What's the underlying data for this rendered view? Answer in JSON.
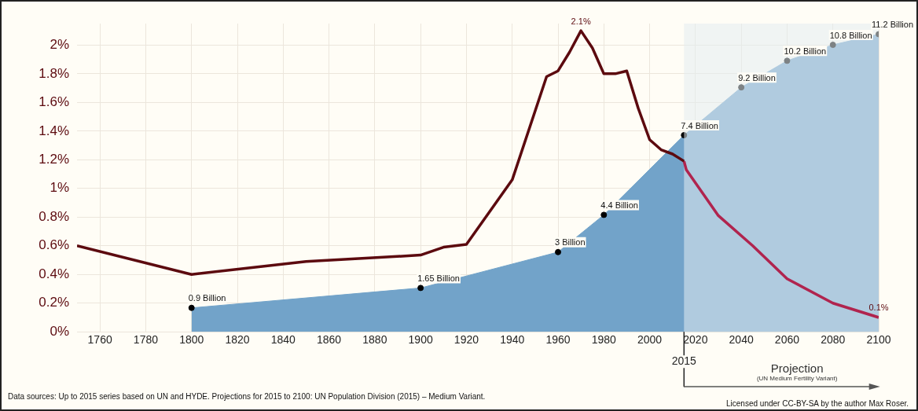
{
  "chart_data": {
    "type": "area",
    "xlim": [
      1750,
      2100
    ],
    "xticks": [
      1760,
      1780,
      1800,
      1820,
      1840,
      1860,
      1880,
      1900,
      1920,
      1940,
      1960,
      1980,
      2000,
      2020,
      2040,
      2060,
      2080,
      2100
    ],
    "ylim": [
      0,
      2.15
    ],
    "yticks": [
      {
        "value": 0,
        "label": "0%"
      },
      {
        "value": 0.2,
        "label": "0.2%"
      },
      {
        "value": 0.4,
        "label": "0.4%"
      },
      {
        "value": 0.6,
        "label": "0.6%"
      },
      {
        "value": 0.8,
        "label": "0.8%"
      },
      {
        "value": 1,
        "label": "1%"
      },
      {
        "value": 1.2,
        "label": "1.2%"
      },
      {
        "value": 1.4,
        "label": "1.4%"
      },
      {
        "value": 1.6,
        "label": "1.6%"
      },
      {
        "value": 1.8,
        "label": "1.8%"
      },
      {
        "value": 2,
        "label": "2%"
      }
    ],
    "y2lim": [
      0,
      11.6
    ],
    "grid": true,
    "legend": false,
    "series": [
      {
        "axis": "y2",
        "color": "#72a3c9",
        "marker": "circle",
        "x": [
          1800,
          1900,
          1960,
          1980,
          2015,
          2040,
          2060,
          2080,
          2100
        ],
        "values": [
          0.9,
          1.65,
          3,
          4.4,
          7.4,
          9.2,
          10.2,
          10.8,
          11.2
        ],
        "value_labels": [
          "0.9 Billion",
          "1.65 Billion",
          "3 Billion",
          "4.4 Billion",
          "7.4 Billion",
          "9.2 Billion",
          "10.2 Billion",
          "10.8 Billion",
          "11.2 Billion"
        ]
      },
      {
        "type": "line",
        "color": "#5c0a0f",
        "x": [
          1750,
          1800,
          1850,
          1900,
          1910,
          1920,
          1940,
          1955,
          1960,
          1965,
          1970,
          1975,
          1980,
          1985,
          1990,
          1995,
          2000,
          2005,
          2010,
          2015
        ],
        "values": [
          0.6,
          0.4,
          0.49,
          0.535,
          0.59,
          0.61,
          1.06,
          1.78,
          1.82,
          1.95,
          2.1,
          1.98,
          1.8,
          1.8,
          1.82,
          1.56,
          1.34,
          1.27,
          1.24,
          1.19
        ],
        "value_labels": [
          null,
          null,
          null,
          null,
          null,
          null,
          null,
          null,
          null,
          null,
          "2.1%",
          null,
          null,
          null,
          null,
          null,
          null,
          null,
          null,
          null
        ]
      },
      {
        "type": "line",
        "color": "#b0244e",
        "x": [
          2015,
          2016,
          2030,
          2045,
          2060,
          2080,
          2100
        ],
        "values": [
          1.19,
          1.13,
          0.81,
          0.6,
          0.37,
          0.2,
          0.1
        ],
        "value_labels": [
          null,
          null,
          null,
          null,
          null,
          null,
          "0.1%"
        ]
      }
    ],
    "ref_lines": [
      {
        "axis": "x",
        "value": 2015,
        "label": "2015",
        "color": "#222222"
      }
    ],
    "bands": [
      {
        "axis": "x",
        "from": 2015,
        "to": 2100,
        "label": "Projection",
        "color": "#e4ecf1"
      }
    ],
    "annotations": [
      "(UN Medium Fertility Variant)",
      "Data sources:  Up to 2015 series based on UN and HYDE. Projections for 2015 to 2100: UN Population Division (2015) – Medium Variant.",
      "Licensed under CC-BY-SA by the author Max Roser."
    ]
  }
}
